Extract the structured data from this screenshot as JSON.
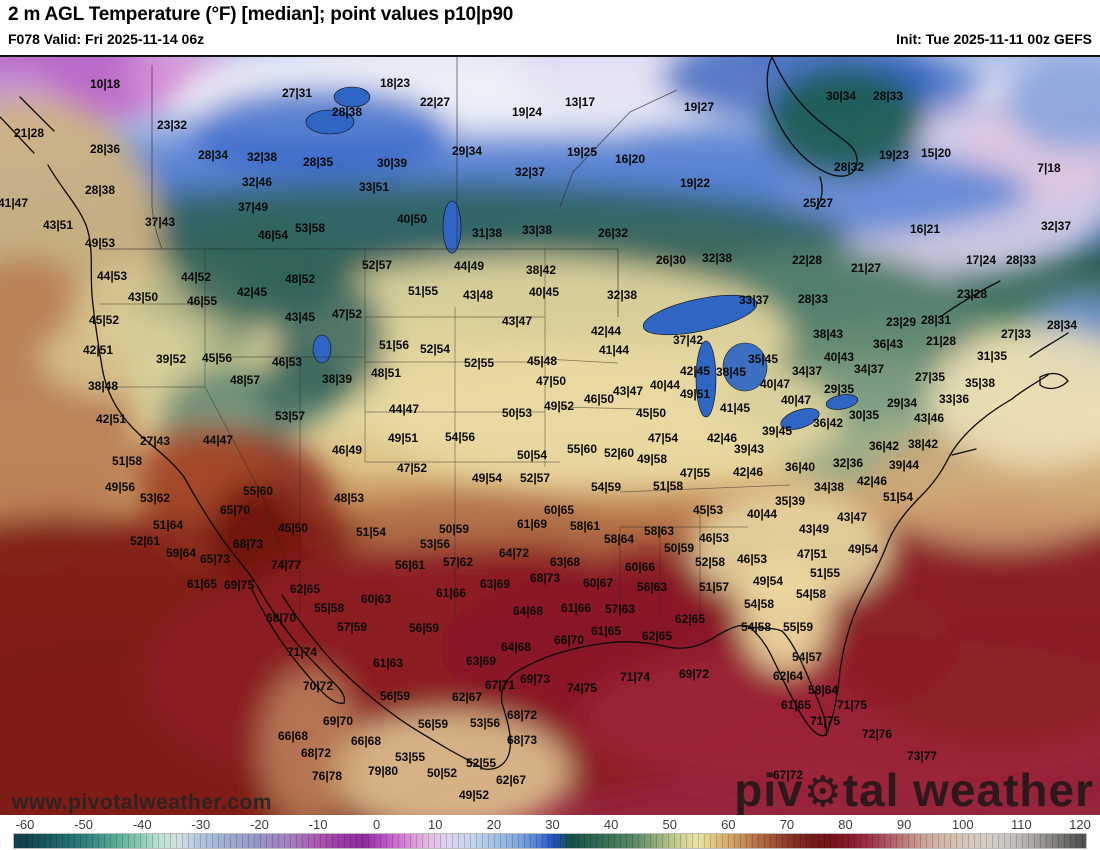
{
  "header": {
    "title": "2 m AGL Temperature (°F) [median]; point values p10|p90",
    "left": "F078 Valid: Fri 2025-11-14 06z",
    "right": "Init: Tue 2025-11-11 00z GEFS"
  },
  "watermarks": {
    "site": "www.pivotalweather.com",
    "brand_prefix": "piv",
    "brand_suffix": "tal weather",
    "gear_glyph": "⚙"
  },
  "colorbar": {
    "unit_values": [
      -60,
      -50,
      -40,
      -30,
      -20,
      -10,
      0,
      10,
      20,
      30,
      40,
      50,
      60,
      70,
      80,
      90,
      100,
      110,
      120
    ],
    "stops": [
      {
        "v": -60,
        "c": "#11444e"
      },
      {
        "v": -55,
        "c": "#1d6066"
      },
      {
        "v": -50,
        "c": "#2e7d7d"
      },
      {
        "v": -45,
        "c": "#55a694"
      },
      {
        "v": -40,
        "c": "#8ecdb6"
      },
      {
        "v": -37,
        "c": "#bfe2d4"
      },
      {
        "v": -34,
        "c": "#d3e2e2"
      },
      {
        "v": -30,
        "c": "#b2c4de"
      },
      {
        "v": -25,
        "c": "#9daacf"
      },
      {
        "v": -20,
        "c": "#9694c6"
      },
      {
        "v": -15,
        "c": "#a37fc0"
      },
      {
        "v": -10,
        "c": "#ab57b0"
      },
      {
        "v": -6,
        "c": "#9a3aa4"
      },
      {
        "v": -2,
        "c": "#8d2d9e"
      },
      {
        "v": 0,
        "c": "#ad44ba"
      },
      {
        "v": 3,
        "c": "#c869cc"
      },
      {
        "v": 6,
        "c": "#dc96da"
      },
      {
        "v": 9,
        "c": "#e4bce4"
      },
      {
        "v": 12,
        "c": "#dcd4ee"
      },
      {
        "v": 16,
        "c": "#c6d6ee"
      },
      {
        "v": 20,
        "c": "#a6c2e6"
      },
      {
        "v": 24,
        "c": "#84a8dc"
      },
      {
        "v": 28,
        "c": "#4a78d0"
      },
      {
        "v": 30,
        "c": "#2356c0"
      },
      {
        "v": 32,
        "c": "#1d4e78"
      },
      {
        "v": 33,
        "c": "#174f4c"
      },
      {
        "v": 36,
        "c": "#26604f"
      },
      {
        "v": 40,
        "c": "#3d7458"
      },
      {
        "v": 44,
        "c": "#5c8a66"
      },
      {
        "v": 47,
        "c": "#85a577"
      },
      {
        "v": 50,
        "c": "#b5c389"
      },
      {
        "v": 53,
        "c": "#dcd89c"
      },
      {
        "v": 55,
        "c": "#e9e3a6"
      },
      {
        "v": 57,
        "c": "#e3cc88"
      },
      {
        "v": 60,
        "c": "#d4a96c"
      },
      {
        "v": 63,
        "c": "#c18756"
      },
      {
        "v": 66,
        "c": "#ab6440"
      },
      {
        "v": 69,
        "c": "#944430"
      },
      {
        "v": 72,
        "c": "#7e2a20"
      },
      {
        "v": 75,
        "c": "#731a16"
      },
      {
        "v": 78,
        "c": "#79141c"
      },
      {
        "v": 81,
        "c": "#891c2e"
      },
      {
        "v": 84,
        "c": "#9c3246"
      },
      {
        "v": 87,
        "c": "#ae5560"
      },
      {
        "v": 90,
        "c": "#bd7b7a"
      },
      {
        "v": 93,
        "c": "#cba196"
      },
      {
        "v": 96,
        "c": "#d3b5a8"
      },
      {
        "v": 100,
        "c": "#d5c5b8"
      },
      {
        "v": 104,
        "c": "#d5cdc6"
      },
      {
        "v": 108,
        "c": "#c9c6c2"
      },
      {
        "v": 112,
        "c": "#a8a5a2"
      },
      {
        "v": 116,
        "c": "#807e7b"
      },
      {
        "v": 120,
        "c": "#565452"
      }
    ]
  },
  "map": {
    "points": [
      [
        "10|18",
        105,
        84
      ],
      [
        "27|31",
        297,
        93
      ],
      [
        "23|32",
        172,
        125
      ],
      [
        "21|28",
        29,
        133
      ],
      [
        "28|38",
        347,
        112
      ],
      [
        "18|23",
        395,
        83
      ],
      [
        "22|27",
        435,
        102
      ],
      [
        "19|24",
        527,
        112
      ],
      [
        "13|17",
        580,
        102
      ],
      [
        "19|27",
        699,
        107
      ],
      [
        "30|34",
        841,
        96
      ],
      [
        "28|33",
        888,
        96
      ],
      [
        "19|23",
        894,
        155
      ],
      [
        "15|20",
        936,
        153
      ],
      [
        "28|32",
        849,
        167
      ],
      [
        "7|18",
        1049,
        168
      ],
      [
        "16|20",
        630,
        159
      ],
      [
        "19|25",
        582,
        152
      ],
      [
        "29|34",
        467,
        151
      ],
      [
        "30|39",
        392,
        163
      ],
      [
        "28|36",
        105,
        149
      ],
      [
        "28|34",
        213,
        155
      ],
      [
        "32|38",
        262,
        157
      ],
      [
        "28|35",
        318,
        162
      ],
      [
        "19|22",
        695,
        183
      ],
      [
        "32|37",
        530,
        172
      ],
      [
        "28|38",
        100,
        190
      ],
      [
        "32|46",
        257,
        182
      ],
      [
        "33|51",
        374,
        187
      ],
      [
        "41|47",
        13,
        203
      ],
      [
        "37|49",
        253,
        207
      ],
      [
        "37|43",
        160,
        222
      ],
      [
        "43|51",
        58,
        225
      ],
      [
        "49|53",
        100,
        243
      ],
      [
        "46|54",
        273,
        235
      ],
      [
        "53|58",
        310,
        228
      ],
      [
        "40|50",
        412,
        219
      ],
      [
        "31|38",
        487,
        233
      ],
      [
        "33|38",
        537,
        230
      ],
      [
        "26|32",
        613,
        233
      ],
      [
        "25|27",
        818,
        203
      ],
      [
        "16|21",
        925,
        229
      ],
      [
        "32|37",
        1056,
        226
      ],
      [
        "44|53",
        112,
        276
      ],
      [
        "44|52",
        196,
        277
      ],
      [
        "48|52",
        300,
        279
      ],
      [
        "43|50",
        143,
        297
      ],
      [
        "46|55",
        202,
        301
      ],
      [
        "42|45",
        252,
        292
      ],
      [
        "43|45",
        300,
        317
      ],
      [
        "47|52",
        347,
        314
      ],
      [
        "45|52",
        104,
        320
      ],
      [
        "42|51",
        98,
        350
      ],
      [
        "39|52",
        171,
        359
      ],
      [
        "45|56",
        217,
        358
      ],
      [
        "46|53",
        287,
        362
      ],
      [
        "48|57",
        245,
        380
      ],
      [
        "38|39",
        337,
        379
      ],
      [
        "38|48",
        103,
        386
      ],
      [
        "42|51",
        111,
        419
      ],
      [
        "53|57",
        290,
        416
      ],
      [
        "52|57",
        377,
        265
      ],
      [
        "44|49",
        469,
        266
      ],
      [
        "38|42",
        541,
        270
      ],
      [
        "26|30",
        671,
        260
      ],
      [
        "32|38",
        717,
        258
      ],
      [
        "51|55",
        423,
        291
      ],
      [
        "43|48",
        478,
        295
      ],
      [
        "40|45",
        544,
        292
      ],
      [
        "32|38",
        622,
        295
      ],
      [
        "43|47",
        517,
        321
      ],
      [
        "42|44",
        606,
        331
      ],
      [
        "37|42",
        688,
        340
      ],
      [
        "51|56",
        394,
        345
      ],
      [
        "52|54",
        435,
        349
      ],
      [
        "41|44",
        614,
        350
      ],
      [
        "52|55",
        479,
        363
      ],
      [
        "45|48",
        542,
        361
      ],
      [
        "48|51",
        386,
        373
      ],
      [
        "42|45",
        695,
        371
      ],
      [
        "38|45",
        731,
        372
      ],
      [
        "47|50",
        551,
        381
      ],
      [
        "40|44",
        665,
        385
      ],
      [
        "43|47",
        628,
        391
      ],
      [
        "49|51",
        695,
        394
      ],
      [
        "46|50",
        599,
        399
      ],
      [
        "49|52",
        559,
        406
      ],
      [
        "44|47",
        404,
        409
      ],
      [
        "50|53",
        517,
        413
      ],
      [
        "45|50",
        651,
        413
      ],
      [
        "41|45",
        735,
        408
      ],
      [
        "22|28",
        807,
        260
      ],
      [
        "21|27",
        866,
        268
      ],
      [
        "17|24",
        981,
        260
      ],
      [
        "28|33",
        1021,
        260
      ],
      [
        "33|37",
        754,
        300
      ],
      [
        "28|33",
        813,
        299
      ],
      [
        "23|28",
        972,
        294
      ],
      [
        "23|29",
        901,
        322
      ],
      [
        "28|31",
        936,
        320
      ],
      [
        "28|34",
        1062,
        325
      ],
      [
        "21|28",
        941,
        341
      ],
      [
        "27|33",
        1016,
        334
      ],
      [
        "38|43",
        828,
        334
      ],
      [
        "36|43",
        888,
        344
      ],
      [
        "31|35",
        992,
        356
      ],
      [
        "35|45",
        763,
        359
      ],
      [
        "40|43",
        839,
        357
      ],
      [
        "34|37",
        869,
        369
      ],
      [
        "34|37",
        807,
        371
      ],
      [
        "40|47",
        775,
        384
      ],
      [
        "29|35",
        839,
        389
      ],
      [
        "27|35",
        930,
        377
      ],
      [
        "35|38",
        980,
        383
      ],
      [
        "40|47",
        796,
        400
      ],
      [
        "29|34",
        902,
        403
      ],
      [
        "33|36",
        954,
        399
      ],
      [
        "30|35",
        864,
        415
      ],
      [
        "36|42",
        828,
        423
      ],
      [
        "43|46",
        929,
        418
      ],
      [
        "39|45",
        777,
        431
      ],
      [
        "27|43",
        155,
        441
      ],
      [
        "44|47",
        218,
        440
      ],
      [
        "46|49",
        347,
        450
      ],
      [
        "51|58",
        127,
        461
      ],
      [
        "49|56",
        120,
        487
      ],
      [
        "53|62",
        155,
        498
      ],
      [
        "55|60",
        258,
        491
      ],
      [
        "48|53",
        349,
        498
      ],
      [
        "65|70",
        235,
        510
      ],
      [
        "51|64",
        168,
        525
      ],
      [
        "45|50",
        293,
        528
      ],
      [
        "52|61",
        145,
        541
      ],
      [
        "68|73",
        248,
        544
      ],
      [
        "59|64",
        181,
        553
      ],
      [
        "65|73",
        215,
        559
      ],
      [
        "74|77",
        286,
        565
      ],
      [
        "61|65",
        202,
        584
      ],
      [
        "69|75",
        239,
        585
      ],
      [
        "62|65",
        305,
        589
      ],
      [
        "55|58",
        329,
        608
      ],
      [
        "68|70",
        281,
        618
      ],
      [
        "49|51",
        403,
        438
      ],
      [
        "54|56",
        460,
        437
      ],
      [
        "47|54",
        663,
        438
      ],
      [
        "42|46",
        722,
        438
      ],
      [
        "50|54",
        532,
        455
      ],
      [
        "55|60",
        582,
        449
      ],
      [
        "52|60",
        619,
        453
      ],
      [
        "49|58",
        652,
        459
      ],
      [
        "47|52",
        412,
        468
      ],
      [
        "47|55",
        695,
        473
      ],
      [
        "49|54",
        487,
        478
      ],
      [
        "52|57",
        535,
        478
      ],
      [
        "54|59",
        606,
        487
      ],
      [
        "51|58",
        668,
        486
      ],
      [
        "45|53",
        708,
        510
      ],
      [
        "60|65",
        559,
        510
      ],
      [
        "61|69",
        532,
        524
      ],
      [
        "58|61",
        585,
        526
      ],
      [
        "58|63",
        659,
        531
      ],
      [
        "50|59",
        454,
        529
      ],
      [
        "58|64",
        619,
        539
      ],
      [
        "46|53",
        714,
        538
      ],
      [
        "51|54",
        371,
        532
      ],
      [
        "53|56",
        435,
        544
      ],
      [
        "50|59",
        679,
        548
      ],
      [
        "64|72",
        514,
        553
      ],
      [
        "57|62",
        458,
        562
      ],
      [
        "56|61",
        410,
        565
      ],
      [
        "63|68",
        565,
        562
      ],
      [
        "52|58",
        710,
        562
      ],
      [
        "60|66",
        640,
        567
      ],
      [
        "68|73",
        545,
        578
      ],
      [
        "63|69",
        495,
        584
      ],
      [
        "60|67",
        598,
        583
      ],
      [
        "56|63",
        652,
        587
      ],
      [
        "51|57",
        714,
        587
      ],
      [
        "61|66",
        451,
        593
      ],
      [
        "60|63",
        376,
        599
      ],
      [
        "64|68",
        528,
        611
      ],
      [
        "61|66",
        576,
        608
      ],
      [
        "57|63",
        620,
        609
      ],
      [
        "62|65",
        690,
        619
      ],
      [
        "39|43",
        749,
        449
      ],
      [
        "36|42",
        884,
        446
      ],
      [
        "38|42",
        923,
        444
      ],
      [
        "42|46",
        748,
        472
      ],
      [
        "36|40",
        800,
        467
      ],
      [
        "32|36",
        848,
        463
      ],
      [
        "39|44",
        904,
        465
      ],
      [
        "42|46",
        872,
        481
      ],
      [
        "34|38",
        829,
        487
      ],
      [
        "51|54",
        898,
        497
      ],
      [
        "35|39",
        790,
        501
      ],
      [
        "40|44",
        762,
        514
      ],
      [
        "43|47",
        852,
        517
      ],
      [
        "43|49",
        814,
        529
      ],
      [
        "49|54",
        863,
        549
      ],
      [
        "46|53",
        752,
        559
      ],
      [
        "47|51",
        812,
        554
      ],
      [
        "51|55",
        825,
        573
      ],
      [
        "49|54",
        768,
        581
      ],
      [
        "54|58",
        811,
        594
      ],
      [
        "54|58",
        759,
        604
      ],
      [
        "57|59",
        352,
        627
      ],
      [
        "56|59",
        424,
        628
      ],
      [
        "61|65",
        606,
        631
      ],
      [
        "62|65",
        657,
        636
      ],
      [
        "66|70",
        569,
        640
      ],
      [
        "64|68",
        516,
        647
      ],
      [
        "71|74",
        302,
        652
      ],
      [
        "61|63",
        388,
        663
      ],
      [
        "63|69",
        481,
        661
      ],
      [
        "69|72",
        694,
        674
      ],
      [
        "69|73",
        535,
        679
      ],
      [
        "71|74",
        635,
        677
      ],
      [
        "67|71",
        500,
        685
      ],
      [
        "74|75",
        582,
        688
      ],
      [
        "70|72",
        318,
        686
      ],
      [
        "56|59",
        395,
        696
      ],
      [
        "62|67",
        467,
        697
      ],
      [
        "68|72",
        522,
        715
      ],
      [
        "69|70",
        338,
        721
      ],
      [
        "56|59",
        433,
        724
      ],
      [
        "53|56",
        485,
        723
      ],
      [
        "66|68",
        293,
        736
      ],
      [
        "68|73",
        522,
        740
      ],
      [
        "66|68",
        366,
        741
      ],
      [
        "68|72",
        316,
        753
      ],
      [
        "53|55",
        410,
        757
      ],
      [
        "79|80",
        383,
        771
      ],
      [
        "52|55",
        481,
        763
      ],
      [
        "50|52",
        442,
        773
      ],
      [
        "76|78",
        327,
        776
      ],
      [
        "62|67",
        511,
        780
      ],
      [
        "49|52",
        474,
        795
      ],
      [
        "54|58",
        756,
        627
      ],
      [
        "55|59",
        798,
        627
      ],
      [
        "54|57",
        807,
        657
      ],
      [
        "62|64",
        788,
        676
      ],
      [
        "58|64",
        823,
        690
      ],
      [
        "61|65",
        796,
        705
      ],
      [
        "71|75",
        852,
        705
      ],
      [
        "71|75",
        825,
        721
      ],
      [
        "72|76",
        877,
        734
      ],
      [
        "73|77",
        922,
        756
      ],
      [
        "67|72",
        788,
        775
      ]
    ]
  }
}
